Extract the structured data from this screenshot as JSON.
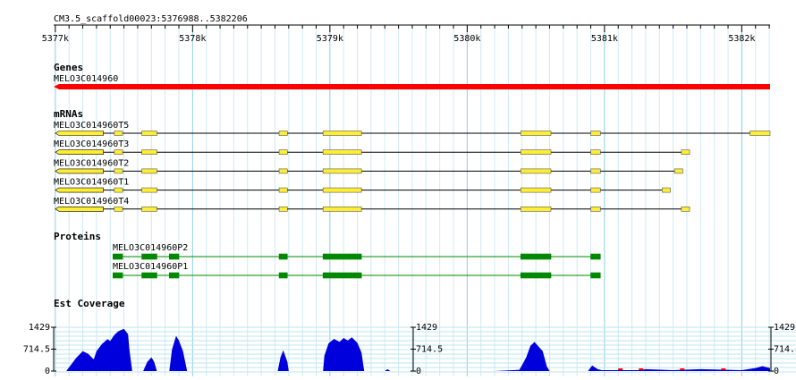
{
  "region": {
    "label": "CM3.5_scaffold00023:5376988..5382206"
  },
  "ruler": {
    "ticks": [
      "5377k",
      "5378k",
      "5379k",
      "5380k",
      "5381k",
      "5382k"
    ]
  },
  "tracks": {
    "genes": {
      "title": "Genes",
      "items": [
        {
          "name": "MELO3C014960",
          "start": 5376988,
          "end": 5382206,
          "color": "#ff0000"
        }
      ]
    },
    "mrnas": {
      "title": "mRNAs",
      "color": "#ffee33",
      "items": [
        {
          "name": "MELO3C014960T5",
          "start": 5377000,
          "end": 5382206,
          "exons": [
            [
              5377000,
              5377350
            ],
            [
              5377430,
              5377490
            ],
            [
              5377630,
              5377740
            ],
            [
              5378630,
              5378690
            ],
            [
              5378950,
              5379230
            ],
            [
              5380390,
              5380610
            ],
            [
              5380900,
              5380970
            ],
            [
              5382060,
              5382206
            ]
          ]
        },
        {
          "name": "MELO3C014960T3",
          "start": 5377000,
          "end": 5381620,
          "exons": [
            [
              5377000,
              5377350
            ],
            [
              5377430,
              5377490
            ],
            [
              5377630,
              5377740
            ],
            [
              5378630,
              5378690
            ],
            [
              5378950,
              5379230
            ],
            [
              5380390,
              5380610
            ],
            [
              5380900,
              5380970
            ],
            [
              5381560,
              5381620
            ]
          ]
        },
        {
          "name": "MELO3C014960T2",
          "start": 5377000,
          "end": 5381570,
          "exons": [
            [
              5377000,
              5377350
            ],
            [
              5377430,
              5377490
            ],
            [
              5377630,
              5377740
            ],
            [
              5378630,
              5378690
            ],
            [
              5378950,
              5379230
            ],
            [
              5380390,
              5380610
            ],
            [
              5380900,
              5380970
            ],
            [
              5381510,
              5381570
            ]
          ]
        },
        {
          "name": "MELO3C014960T1",
          "start": 5377000,
          "end": 5381480,
          "exons": [
            [
              5377000,
              5377350
            ],
            [
              5377430,
              5377490
            ],
            [
              5377630,
              5377740
            ],
            [
              5378630,
              5378690
            ],
            [
              5378950,
              5379230
            ],
            [
              5380390,
              5380610
            ],
            [
              5380900,
              5380970
            ],
            [
              5381420,
              5381480
            ]
          ]
        },
        {
          "name": "MELO3C014960T4",
          "start": 5377000,
          "end": 5381620,
          "exons": [
            [
              5377000,
              5377350
            ],
            [
              5377430,
              5377490
            ],
            [
              5377630,
              5377740
            ],
            [
              5378630,
              5378690
            ],
            [
              5378950,
              5379230
            ],
            [
              5380390,
              5380610
            ],
            [
              5380900,
              5380970
            ],
            [
              5381560,
              5381620
            ]
          ]
        }
      ]
    },
    "proteins": {
      "title": "Proteins",
      "color": "#008800",
      "items": [
        {
          "name": "MELO3C014960P2",
          "start": 5377420,
          "end": 5380970,
          "exons": [
            [
              5377420,
              5377490
            ],
            [
              5377630,
              5377740
            ],
            [
              5377830,
              5377900
            ],
            [
              5378630,
              5378690
            ],
            [
              5378950,
              5379230
            ],
            [
              5380390,
              5380610
            ],
            [
              5380900,
              5380970
            ]
          ]
        },
        {
          "name": "MELO3C014960P1",
          "start": 5377420,
          "end": 5380970,
          "exons": [
            [
              5377420,
              5377490
            ],
            [
              5377630,
              5377740
            ],
            [
              5377830,
              5377900
            ],
            [
              5378630,
              5378690
            ],
            [
              5378950,
              5379230
            ],
            [
              5380390,
              5380610
            ],
            [
              5380900,
              5380970
            ]
          ]
        }
      ]
    },
    "coverage": {
      "title": "Est Coverage",
      "y_max_label": "1429",
      "y_mid_label": "714.5",
      "y_min_label": "0",
      "max": 1429,
      "color": "#0000dd",
      "low_color": "#ff0000",
      "profile": [
        [
          5377000,
          0
        ],
        [
          5377080,
          0
        ],
        [
          5377100,
          120
        ],
        [
          5377150,
          420
        ],
        [
          5377200,
          650
        ],
        [
          5377240,
          560
        ],
        [
          5377280,
          380
        ],
        [
          5377300,
          650
        ],
        [
          5377340,
          880
        ],
        [
          5377380,
          1040
        ],
        [
          5377400,
          980
        ],
        [
          5377430,
          1180
        ],
        [
          5377460,
          1300
        ],
        [
          5377500,
          1380
        ],
        [
          5377530,
          1200
        ],
        [
          5377540,
          700
        ],
        [
          5377560,
          0
        ],
        [
          5377640,
          0
        ],
        [
          5377670,
          300
        ],
        [
          5377700,
          450
        ],
        [
          5377720,
          300
        ],
        [
          5377740,
          0
        ],
        [
          5377830,
          0
        ],
        [
          5377850,
          700
        ],
        [
          5377880,
          1150
        ],
        [
          5377900,
          1000
        ],
        [
          5377930,
          650
        ],
        [
          5377960,
          0
        ],
        [
          5378620,
          0
        ],
        [
          5378640,
          450
        ],
        [
          5378660,
          680
        ],
        [
          5378690,
          300
        ],
        [
          5378700,
          0
        ],
        [
          5378950,
          0
        ],
        [
          5378960,
          500
        ],
        [
          5378990,
          900
        ],
        [
          5379030,
          1050
        ],
        [
          5379070,
          950
        ],
        [
          5379100,
          1080
        ],
        [
          5379130,
          1000
        ],
        [
          5379160,
          1100
        ],
        [
          5379200,
          920
        ],
        [
          5379230,
          600
        ],
        [
          5379250,
          0
        ],
        [
          5379400,
          0
        ],
        [
          5379420,
          60
        ],
        [
          5379440,
          0
        ],
        [
          5380200,
          0
        ],
        [
          5380380,
          40
        ],
        [
          5380400,
          200
        ],
        [
          5380430,
          450
        ],
        [
          5380460,
          820
        ],
        [
          5380490,
          950
        ],
        [
          5380520,
          800
        ],
        [
          5380550,
          650
        ],
        [
          5380580,
          150
        ],
        [
          5380600,
          0
        ],
        [
          5380880,
          0
        ],
        [
          5380910,
          180
        ],
        [
          5380950,
          60
        ],
        [
          5380980,
          30
        ],
        [
          5381260,
          30
        ],
        [
          5381300,
          60
        ],
        [
          5381500,
          30
        ],
        [
          5381700,
          60
        ],
        [
          5381900,
          40
        ],
        [
          5382000,
          30
        ],
        [
          5382100,
          100
        ],
        [
          5382150,
          160
        ],
        [
          5382206,
          100
        ]
      ]
    }
  }
}
